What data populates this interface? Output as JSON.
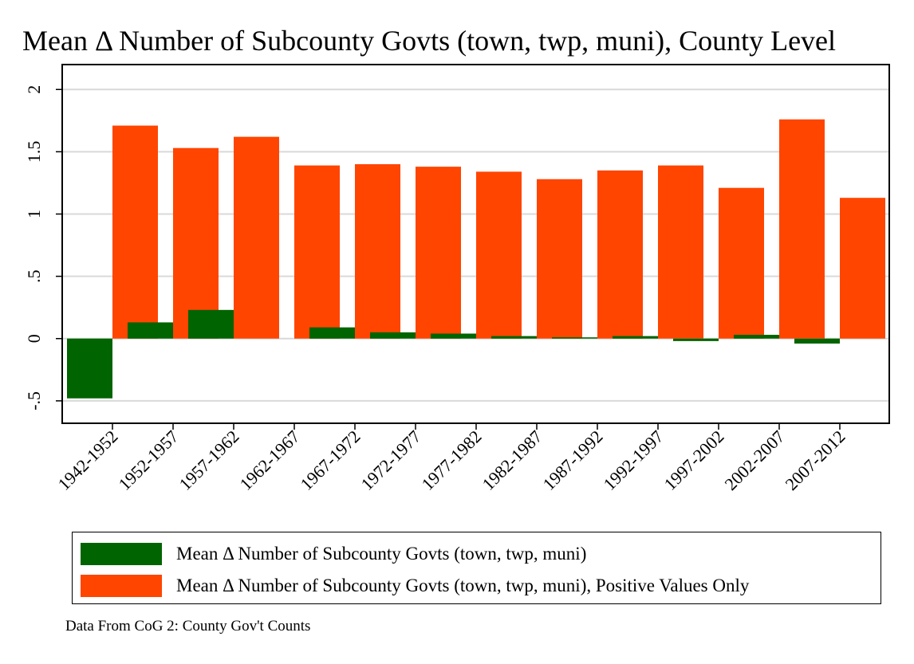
{
  "chart_data": {
    "type": "bar",
    "title": "Mean Δ Number of Subcounty Govts (town, twp, muni), County Level",
    "xlabel": "",
    "ylabel": "",
    "categories": [
      "1942-1952",
      "1952-1957",
      "1957-1962",
      "1962-1967",
      "1967-1972",
      "1972-1977",
      "1977-1982",
      "1982-1987",
      "1987-1992",
      "1992-1997",
      "1997-2002",
      "2002-2007",
      "2007-2012"
    ],
    "series": [
      {
        "name": "Mean Δ Number of Subcounty Govts (town, twp, muni)",
        "color": "#006400",
        "values": [
          -0.48,
          0.13,
          0.23,
          0.0,
          0.09,
          0.05,
          0.04,
          0.02,
          0.01,
          0.02,
          -0.02,
          0.03,
          -0.04
        ]
      },
      {
        "name": "Mean Δ Number of Subcounty Govts (town, twp, muni), Positive Values Only",
        "color": "#ff4500",
        "values": [
          1.71,
          1.53,
          1.62,
          1.39,
          1.4,
          1.38,
          1.34,
          1.28,
          1.35,
          1.39,
          1.21,
          1.76,
          1.13
        ]
      }
    ],
    "yticks": [
      -0.5,
      0,
      0.5,
      1,
      1.5,
      2
    ],
    "ytick_labels": [
      "-.5",
      "0",
      ".5",
      "1",
      "1.5",
      "2"
    ],
    "ylim": [
      -0.68,
      2.2
    ],
    "grid": true,
    "legend_position": "bottom"
  },
  "source_note": "Data From CoG 2: County Gov't Counts"
}
